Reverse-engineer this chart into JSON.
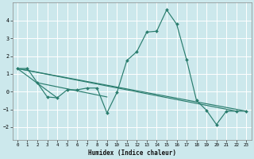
{
  "xlabel": "Humidex (Indice chaleur)",
  "background_color": "#cce8ec",
  "grid_color": "#ffffff",
  "line_color": "#2a7d6e",
  "xlim": [
    -0.5,
    23.5
  ],
  "ylim": [
    -2.7,
    5.0
  ],
  "yticks": [
    -2,
    -1,
    0,
    1,
    2,
    3,
    4
  ],
  "xticks": [
    0,
    1,
    2,
    3,
    4,
    5,
    6,
    7,
    8,
    9,
    10,
    11,
    12,
    13,
    14,
    15,
    16,
    17,
    18,
    19,
    20,
    21,
    22,
    23
  ],
  "main_x": [
    0,
    1,
    2,
    3,
    4,
    5,
    6,
    7,
    8,
    9,
    10,
    11,
    12,
    13,
    14,
    15,
    16,
    17,
    18,
    19,
    20,
    21,
    22,
    23
  ],
  "main_y": [
    1.3,
    1.3,
    0.5,
    -0.3,
    -0.35,
    0.1,
    0.1,
    0.2,
    0.2,
    -1.2,
    -0.05,
    1.75,
    2.25,
    3.35,
    3.4,
    4.6,
    3.8,
    1.8,
    -0.5,
    -1.05,
    -1.85,
    -1.1,
    -1.1,
    -1.1
  ],
  "reg_lines": [
    [
      [
        0,
        23
      ],
      [
        1.3,
        -1.1
      ]
    ],
    [
      [
        0,
        22
      ],
      [
        1.3,
        -1.1
      ]
    ],
    [
      [
        0,
        4
      ],
      [
        1.3,
        -0.35
      ]
    ],
    [
      [
        2,
        9
      ],
      [
        0.5,
        -0.3
      ]
    ]
  ]
}
